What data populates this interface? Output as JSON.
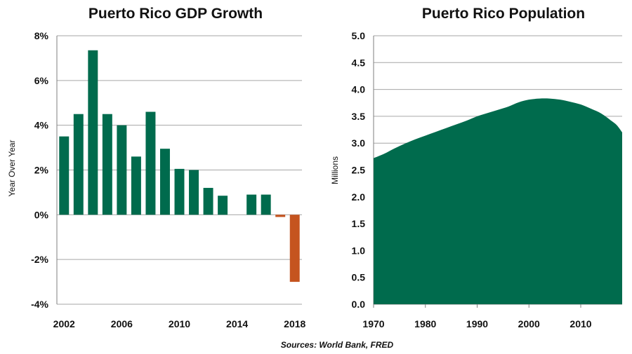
{
  "source": "Sources: World Bank, FRED",
  "colors": {
    "positive": "#006b4d",
    "negative": "#c5541f",
    "area": "#006b4d",
    "grid": "#a6a6a6"
  },
  "chart_data": [
    {
      "type": "bar",
      "title": "Puerto Rico GDP Growth",
      "ylabel": "Year Over Year",
      "xlabel": "",
      "ylim": [
        -4,
        8
      ],
      "yticks": [
        8,
        6,
        4,
        2,
        0,
        -2,
        -4
      ],
      "ytick_labels": [
        "8%",
        "6%",
        "4%",
        "2%",
        "0%",
        "-2%",
        "-4%"
      ],
      "xtick_labels": [
        "2002",
        "2006",
        "2010",
        "2014",
        "2018"
      ],
      "grid": true,
      "categories": [
        2002,
        2003,
        2004,
        2005,
        2006,
        2007,
        2008,
        2009,
        2010,
        2011,
        2012,
        2013,
        2014,
        2015,
        2016,
        2017,
        2018
      ],
      "values": [
        3.5,
        4.5,
        7.35,
        4.5,
        4.0,
        2.6,
        4.6,
        2.95,
        2.05,
        2.0,
        1.2,
        0.85,
        0.0,
        0.9,
        0.9,
        -0.1,
        -3.0
      ]
    },
    {
      "type": "area",
      "title": "Puerto Rico Population",
      "ylabel": "Millions",
      "xlabel": "",
      "ylim": [
        0,
        5
      ],
      "xlim": [
        1970,
        2018
      ],
      "yticks": [
        0.0,
        0.5,
        1.0,
        1.5,
        2.0,
        2.5,
        3.0,
        3.5,
        4.0,
        4.5,
        5.0
      ],
      "ytick_labels": [
        "0.0",
        "0.5",
        "1.0",
        "1.5",
        "2.0",
        "2.5",
        "3.0",
        "3.5",
        "4.0",
        "4.5",
        "5.0"
      ],
      "xtick_labels": [
        "1970",
        "1980",
        "1990",
        "2000",
        "2010"
      ],
      "xticks": [
        1970,
        1980,
        1990,
        2000,
        2010
      ],
      "grid": true,
      "x": [
        1970,
        1972,
        1974,
        1976,
        1978,
        1980,
        1982,
        1984,
        1986,
        1988,
        1990,
        1992,
        1994,
        1996,
        1998,
        2000,
        2002,
        2004,
        2006,
        2008,
        2010,
        2012,
        2014,
        2016,
        2017,
        2018
      ],
      "y": [
        2.72,
        2.8,
        2.9,
        2.99,
        3.07,
        3.14,
        3.21,
        3.28,
        3.35,
        3.42,
        3.5,
        3.56,
        3.62,
        3.68,
        3.76,
        3.81,
        3.83,
        3.83,
        3.81,
        3.77,
        3.72,
        3.64,
        3.55,
        3.41,
        3.33,
        3.2
      ]
    }
  ]
}
